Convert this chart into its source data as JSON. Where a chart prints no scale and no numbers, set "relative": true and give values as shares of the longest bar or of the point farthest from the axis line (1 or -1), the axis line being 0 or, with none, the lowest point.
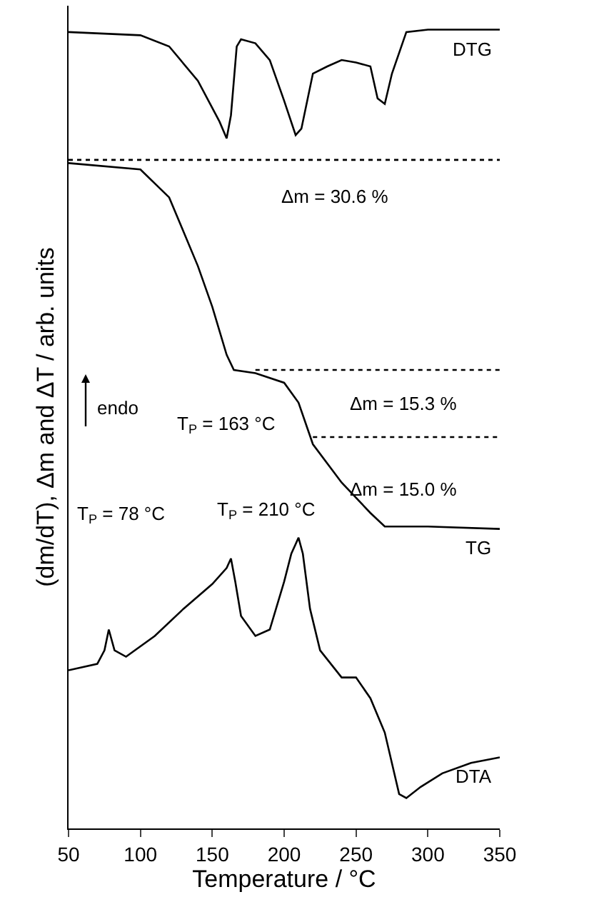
{
  "chart_data": {
    "type": "line",
    "relative": true,
    "xlabel": "Temperature / °C",
    "ylabel": "(dm/dT), Δm and ΔT / arb. units",
    "xlim": [
      50,
      350
    ],
    "xticks": [
      50,
      100,
      150,
      200,
      250,
      300,
      350
    ],
    "legend": false,
    "grid": false,
    "marker": "none",
    "series": [
      {
        "name": "DTG",
        "color": "#000000",
        "line_style": "solid",
        "x": [
          50,
          100,
          120,
          140,
          155,
          160,
          163,
          167,
          170,
          180,
          190,
          200,
          208,
          212,
          220,
          230,
          240,
          250,
          260,
          265,
          270,
          275,
          285,
          300,
          350
        ],
        "values": [
          0.997,
          0.993,
          0.979,
          0.936,
          0.885,
          0.864,
          0.893,
          0.979,
          0.988,
          0.983,
          0.962,
          0.911,
          0.868,
          0.876,
          0.945,
          0.954,
          0.962,
          0.959,
          0.954,
          0.914,
          0.907,
          0.945,
          0.997,
          1,
          1
        ]
      },
      {
        "name": "TG",
        "color": "#000000",
        "line_style": "solid",
        "x": [
          50,
          100,
          120,
          140,
          150,
          160,
          165,
          180,
          200,
          210,
          220,
          240,
          260,
          270,
          280,
          300,
          350
        ],
        "values": [
          0.833,
          0.825,
          0.79,
          0.704,
          0.653,
          0.593,
          0.574,
          0.57,
          0.558,
          0.533,
          0.481,
          0.433,
          0.395,
          0.378,
          0.378,
          0.378,
          0.375
        ]
      },
      {
        "name": "DTA",
        "color": "#000000",
        "line_style": "solid",
        "x": [
          50,
          70,
          75,
          78,
          82,
          90,
          110,
          130,
          150,
          160,
          163,
          166,
          170,
          180,
          190,
          200,
          205,
          210,
          213,
          218,
          225,
          240,
          250,
          260,
          270,
          280,
          285,
          295,
          310,
          330,
          350
        ],
        "values": [
          0.198,
          0.206,
          0.223,
          0.249,
          0.223,
          0.215,
          0.241,
          0.275,
          0.306,
          0.326,
          0.338,
          0.309,
          0.266,
          0.241,
          0.249,
          0.309,
          0.344,
          0.364,
          0.344,
          0.275,
          0.223,
          0.189,
          0.189,
          0.163,
          0.12,
          0.043,
          0.038,
          0.052,
          0.069,
          0.082,
          0.089
        ]
      },
      {
        "color": "#000000",
        "line_style": "dotted",
        "x": [
          50,
          350
        ],
        "values": [
          0.837,
          0.837
        ]
      },
      {
        "color": "#000000",
        "line_style": "dotted",
        "x": [
          180,
          350
        ],
        "values": [
          0.574,
          0.574
        ]
      },
      {
        "color": "#000000",
        "line_style": "dotted",
        "x": [
          220,
          350
        ],
        "values": [
          0.49,
          0.49
        ]
      }
    ],
    "annotations": [
      "endo",
      "Δm = 30.6 %",
      "Δm = 15.3 %",
      "Δm = 15.0 %",
      "T$_{P}$ = 78 °C",
      "T$_{P}$ = 163 °C",
      "T$_{P}$ = 210 °C"
    ]
  }
}
